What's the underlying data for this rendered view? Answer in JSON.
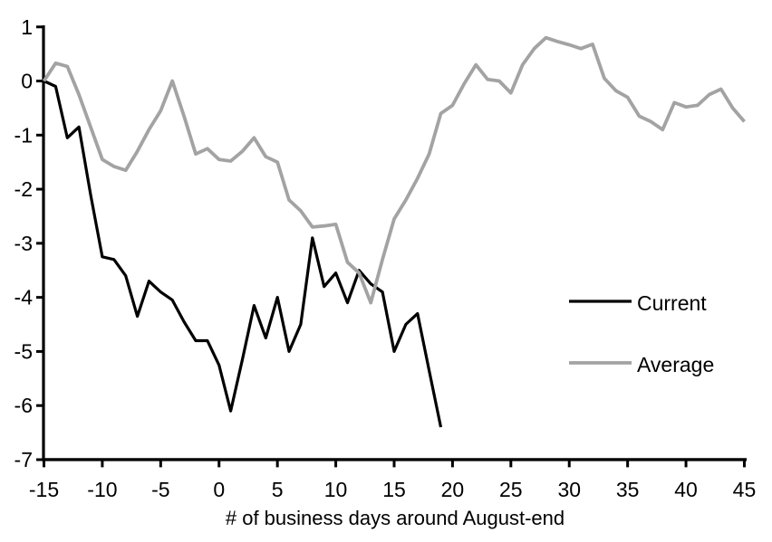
{
  "figure": {
    "background": "#ffffff",
    "axis_color": "#000000",
    "text_color": "#000000"
  },
  "chart_data": {
    "type": "line",
    "title": "",
    "xlabel": "# of business days around August-end",
    "ylabel": "",
    "xlim": [
      -15,
      45
    ],
    "ylim": [
      -7,
      1
    ],
    "xticks": [
      -15,
      -10,
      -5,
      0,
      5,
      10,
      15,
      20,
      25,
      30,
      35,
      40,
      45
    ],
    "yticks": [
      1,
      0,
      -1,
      -2,
      -3,
      -4,
      -5,
      -6,
      -7
    ],
    "grid": false,
    "legend_position": "right-middle",
    "series": [
      {
        "name": "Current",
        "color": "#000000",
        "width": 3.2,
        "points": [
          [
            -15,
            0.0
          ],
          [
            -14,
            -0.1
          ],
          [
            -13,
            -1.05
          ],
          [
            -12,
            -0.85
          ],
          [
            -11,
            -2.1
          ],
          [
            -10,
            -3.25
          ],
          [
            -9,
            -3.3
          ],
          [
            -8,
            -3.6
          ],
          [
            -7,
            -4.35
          ],
          [
            -6,
            -3.7
          ],
          [
            -5,
            -3.9
          ],
          [
            -4,
            -4.05
          ],
          [
            -3,
            -4.45
          ],
          [
            -2,
            -4.8
          ],
          [
            -1,
            -4.8
          ],
          [
            0,
            -5.25
          ],
          [
            1,
            -6.1
          ],
          [
            2,
            -5.15
          ],
          [
            3,
            -4.15
          ],
          [
            4,
            -4.75
          ],
          [
            5,
            -4.0
          ],
          [
            6,
            -5.0
          ],
          [
            7,
            -4.5
          ],
          [
            8,
            -2.9
          ],
          [
            9,
            -3.8
          ],
          [
            10,
            -3.55
          ],
          [
            11,
            -4.1
          ],
          [
            12,
            -3.5
          ],
          [
            13,
            -3.75
          ],
          [
            14,
            -3.9
          ],
          [
            15,
            -5.0
          ],
          [
            16,
            -4.5
          ],
          [
            17,
            -4.3
          ],
          [
            18,
            -5.35
          ],
          [
            19,
            -6.4
          ]
        ]
      },
      {
        "name": "Average",
        "color": "#a3a3a3",
        "width": 3.8,
        "points": [
          [
            -15,
            0.0
          ],
          [
            -14,
            0.33
          ],
          [
            -13,
            0.27
          ],
          [
            -12,
            -0.25
          ],
          [
            -11,
            -0.85
          ],
          [
            -10,
            -1.45
          ],
          [
            -9,
            -1.58
          ],
          [
            -8,
            -1.65
          ],
          [
            -7,
            -1.3
          ],
          [
            -6,
            -0.9
          ],
          [
            -5,
            -0.55
          ],
          [
            -4,
            0.0
          ],
          [
            -3,
            -0.65
          ],
          [
            -2,
            -1.35
          ],
          [
            -1,
            -1.25
          ],
          [
            0,
            -1.45
          ],
          [
            1,
            -1.48
          ],
          [
            2,
            -1.3
          ],
          [
            3,
            -1.05
          ],
          [
            4,
            -1.4
          ],
          [
            5,
            -1.5
          ],
          [
            6,
            -2.2
          ],
          [
            7,
            -2.4
          ],
          [
            8,
            -2.7
          ],
          [
            9,
            -2.68
          ],
          [
            10,
            -2.65
          ],
          [
            11,
            -3.35
          ],
          [
            12,
            -3.55
          ],
          [
            13,
            -4.1
          ],
          [
            14,
            -3.3
          ],
          [
            15,
            -2.55
          ],
          [
            16,
            -2.2
          ],
          [
            17,
            -1.8
          ],
          [
            18,
            -1.35
          ],
          [
            19,
            -0.6
          ],
          [
            20,
            -0.45
          ],
          [
            21,
            -0.05
          ],
          [
            22,
            0.3
          ],
          [
            23,
            0.03
          ],
          [
            24,
            0.0
          ],
          [
            25,
            -0.22
          ],
          [
            26,
            0.3
          ],
          [
            27,
            0.6
          ],
          [
            28,
            0.8
          ],
          [
            29,
            0.73
          ],
          [
            30,
            0.67
          ],
          [
            31,
            0.6
          ],
          [
            32,
            0.68
          ],
          [
            33,
            0.05
          ],
          [
            34,
            -0.18
          ],
          [
            35,
            -0.3
          ],
          [
            36,
            -0.65
          ],
          [
            37,
            -0.75
          ],
          [
            38,
            -0.9
          ],
          [
            39,
            -0.4
          ],
          [
            40,
            -0.48
          ],
          [
            41,
            -0.45
          ],
          [
            42,
            -0.25
          ],
          [
            43,
            -0.15
          ],
          [
            44,
            -0.5
          ],
          [
            45,
            -0.75
          ]
        ]
      }
    ]
  }
}
